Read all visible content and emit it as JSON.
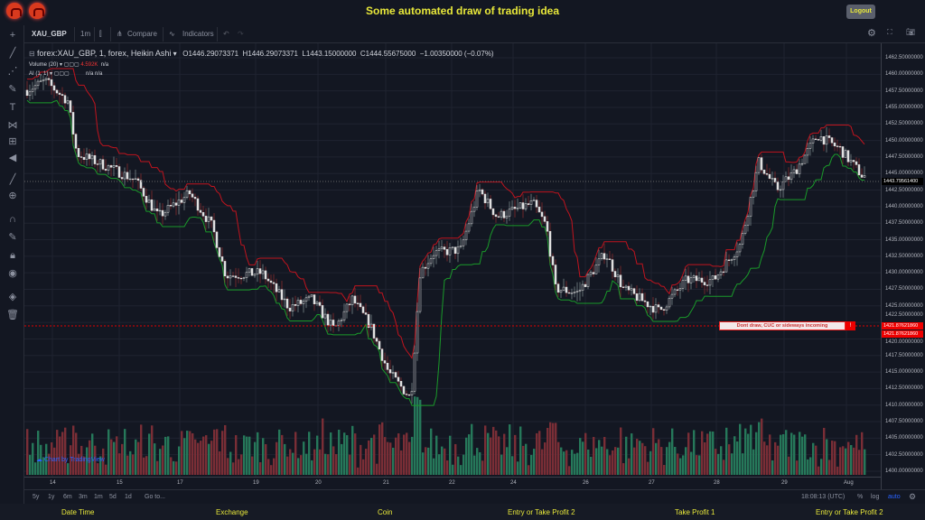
{
  "header": {
    "title": "Some automated draw of trading idea",
    "logout": "Logout",
    "logo_icons": [
      "bull-logo-icon",
      "bull-logo-icon"
    ]
  },
  "toolbar": {
    "symbol": "XAU_GBP",
    "interval": "1m",
    "compare": "Compare",
    "indicators": "Indicators"
  },
  "legend": {
    "series": "forex:XAU_GBP, 1, forex, Heikin Ashi",
    "open": "O1446.29073371",
    "high": "H1446.29073371",
    "low": "L1443.15000000",
    "close": "C1444.55675000",
    "change": "−1.00350000 (−0.07%)",
    "volume": "Volume (20)",
    "volume_value": "4.592K",
    "volume_na": "n/a",
    "ai": "AI (1, 1)",
    "ai_na": "n/a  n/a"
  },
  "price_axis": {
    "ticks": [
      "1462.50000000",
      "1460.00000000",
      "1457.50000000",
      "1455.00000000",
      "1452.50000000",
      "1450.00000000",
      "1447.50000000",
      "1445.00000000",
      "1442.50000000",
      "1440.00000000",
      "1437.50000000",
      "1435.00000000",
      "1432.50000000",
      "1430.00000000",
      "1427.50000000",
      "1425.00000000",
      "1422.50000000",
      "1420.00000000",
      "1417.50000000",
      "1415.00000000",
      "1412.50000000",
      "1410.00000000",
      "1407.50000000",
      "1405.00000000",
      "1402.50000000",
      "1400.00000000"
    ],
    "current_price": "1443.79561400",
    "line_price_1": "1421.87621860",
    "line_price_2": "1421.87621860"
  },
  "time_axis": {
    "labels": [
      "14",
      "15",
      "17",
      "19",
      "20",
      "21",
      "22",
      "24",
      "26",
      "27",
      "28",
      "29",
      "Aug"
    ]
  },
  "annotation": {
    "text": "Dont draw, CUC or sideways incoming",
    "button": "!",
    "line_color": "#e00000"
  },
  "branding": "Chart by TradingView",
  "bottombar": {
    "ranges": [
      "5y",
      "1y",
      "6m",
      "3m",
      "1m",
      "5d",
      "1d"
    ],
    "goto": "Go to...",
    "time": "18:08:13 (UTC)",
    "percent": "%",
    "log": "log",
    "auto": "auto"
  },
  "footer": [
    "Date Time",
    "Exchange",
    "Coin",
    "Entry or Take Profit 2",
    "Take Profit 1",
    "Entry or Take Profit 2"
  ],
  "colors": {
    "up_volume": "#26785a",
    "down_volume": "#7a2e36",
    "upper_band": "#c0141e",
    "lower_band": "#1a9a2a",
    "title": "#e8e83a"
  },
  "chart_data": {
    "type": "candlestick",
    "style": "Heikin Ashi",
    "ylim": [
      1400,
      1462.5
    ],
    "price_path": [
      1457.6,
      1459,
      1456,
      1448,
      1446,
      1444,
      1438.5,
      1442,
      1437,
      1429.6,
      1430,
      1424.8,
      1426,
      1421.4,
      1426,
      1422,
      1415,
      1411,
      1430,
      1433,
      1433.5,
      1442.6,
      1438.5,
      1440.5,
      1437,
      1427.6,
      1427,
      1433,
      1427.6,
      1424.2,
      1428.9,
      1428.9,
      1434.4,
      1446.7,
      1442.6,
      1445.3,
      1450.8,
      1448.7,
      1444.6
    ]
  }
}
